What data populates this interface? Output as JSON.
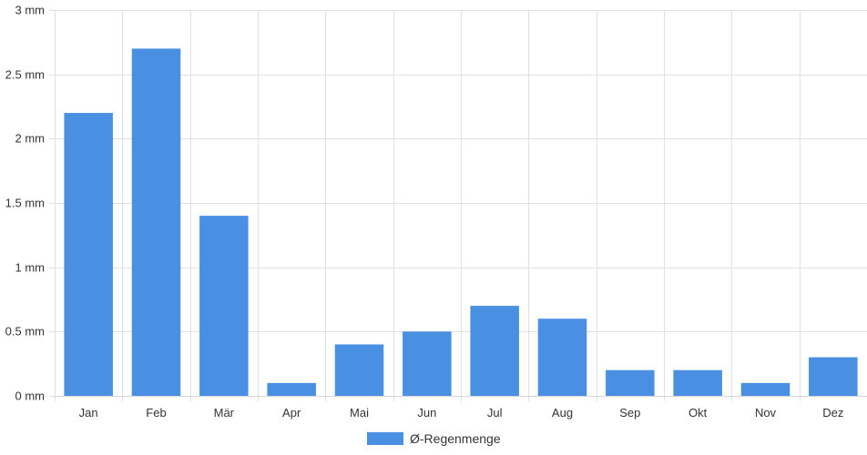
{
  "chart_data": {
    "type": "bar",
    "categories": [
      "Jan",
      "Feb",
      "Mär",
      "Apr",
      "Mai",
      "Jun",
      "Jul",
      "Aug",
      "Sep",
      "Okt",
      "Nov",
      "Dez"
    ],
    "series": [
      {
        "name": "Ø-Regenmenge",
        "values": [
          2.2,
          2.7,
          1.4,
          0.1,
          0.4,
          0.5,
          0.7,
          0.6,
          0.2,
          0.2,
          0.1,
          0.3
        ]
      }
    ],
    "ylim": [
      0,
      3
    ],
    "y_ticks": [
      0,
      0.5,
      1,
      1.5,
      2,
      2.5,
      3
    ],
    "y_tick_labels": [
      "0 mm",
      "0.5 mm",
      "1 mm",
      "1.5 mm",
      "2 mm",
      "2.5 mm",
      "3 mm"
    ],
    "grid": true,
    "legend_position": "bottom-center",
    "colors": {
      "bar": "#4a90e2",
      "grid": "#e0e0e0",
      "text": "#333333"
    }
  }
}
